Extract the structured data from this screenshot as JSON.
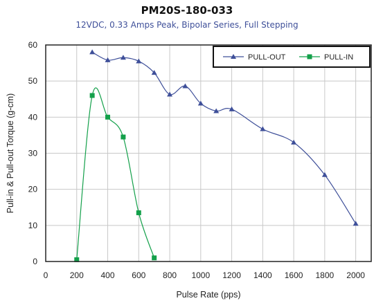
{
  "chart_data": {
    "type": "line",
    "title": "PM20S-180-033",
    "subtitle": "12VDC,  0.33 Amps Peak, Bipolar Series, Full Stepping",
    "xlabel": "Pulse Rate (pps)",
    "ylabel": "Pull-in & Pull-out Torque (g-cm)",
    "xlim": [
      0,
      2100
    ],
    "ylim": [
      0,
      60
    ],
    "xticks": [
      0,
      200,
      400,
      600,
      800,
      1000,
      1200,
      1400,
      1600,
      1800,
      2000
    ],
    "yticks": [
      0,
      10,
      20,
      30,
      40,
      50,
      60
    ],
    "grid": true,
    "legend_position": "top-right",
    "series": [
      {
        "name": "PULL-OUT",
        "color": "#3e4f99",
        "marker": "triangle",
        "x": [
          300,
          400,
          500,
          600,
          700,
          800,
          900,
          1000,
          1100,
          1200,
          1400,
          1600,
          1800,
          2000
        ],
        "y": [
          58,
          55.8,
          56.5,
          55.5,
          52.3,
          46.3,
          48.6,
          43.8,
          41.7,
          42.2,
          36.7,
          33,
          24,
          10.5
        ]
      },
      {
        "name": "PULL-IN",
        "color": "#13a04a",
        "marker": "square",
        "x": [
          200,
          300,
          400,
          500,
          600,
          700
        ],
        "y": [
          0.5,
          46,
          40,
          34.5,
          13.5,
          1
        ]
      }
    ]
  }
}
